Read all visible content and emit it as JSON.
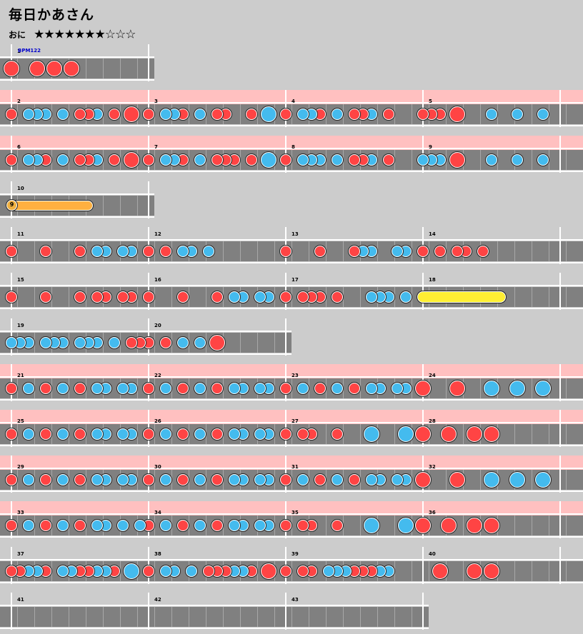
{
  "song": {
    "title": "毎日かあさん",
    "difficulty": "おに",
    "stars": "★★★★★★★☆☆☆",
    "bpm_label": "BPM122"
  },
  "colors": {
    "don": "#ff4444",
    "ka": "#44bbee",
    "roll": "#ffb040",
    "big_roll": "#ffee33",
    "band": "#ffc0c0",
    "track": "#808080"
  },
  "rows": [
    {
      "top": 62,
      "bars": 1,
      "band": false,
      "first": 1,
      "bpm": true,
      "notes": [
        [
          0,
          "D"
        ],
        [
          0.1875,
          "D"
        ],
        [
          0.3125,
          "D"
        ],
        [
          0.4375,
          "D"
        ]
      ]
    },
    {
      "top": 126,
      "bars": 4,
      "band": true,
      "first": 2,
      "notes": [
        [
          0,
          "d"
        ],
        [
          0.125,
          "k"
        ],
        [
          0.1875,
          "k"
        ],
        [
          0.25,
          "k"
        ],
        [
          0.375,
          "k"
        ],
        [
          0.5,
          "d"
        ],
        [
          0.5625,
          "d"
        ],
        [
          0.625,
          "k"
        ],
        [
          0.75,
          "d"
        ],
        [
          0.875,
          "D"
        ],
        [
          1,
          "d"
        ],
        [
          1.125,
          "k"
        ],
        [
          1.1875,
          "k"
        ],
        [
          1.25,
          "d"
        ],
        [
          1.375,
          "k"
        ],
        [
          1.5,
          "d"
        ],
        [
          1.5625,
          "d"
        ],
        [
          1.75,
          "d"
        ],
        [
          1.875,
          "K"
        ],
        [
          2,
          "d"
        ],
        [
          2.125,
          "k"
        ],
        [
          2.1875,
          "k"
        ],
        [
          2.25,
          "d"
        ],
        [
          2.375,
          "k"
        ],
        [
          2.5,
          "d"
        ],
        [
          2.5625,
          "d"
        ],
        [
          2.625,
          "k"
        ],
        [
          2.75,
          "d"
        ],
        [
          3,
          "d"
        ],
        [
          3.0625,
          "d"
        ],
        [
          3.125,
          "d"
        ],
        [
          3.25,
          "D"
        ],
        [
          3.5,
          "k"
        ],
        [
          3.6875,
          "k"
        ],
        [
          3.875,
          "k"
        ]
      ]
    },
    {
      "top": 190,
      "bars": 4,
      "band": true,
      "first": 6,
      "notes": [
        [
          0,
          "d"
        ],
        [
          0.125,
          "k"
        ],
        [
          0.1875,
          "k"
        ],
        [
          0.25,
          "d"
        ],
        [
          0.375,
          "k"
        ],
        [
          0.5,
          "d"
        ],
        [
          0.5625,
          "d"
        ],
        [
          0.625,
          "k"
        ],
        [
          0.75,
          "d"
        ],
        [
          0.875,
          "D"
        ],
        [
          1,
          "d"
        ],
        [
          1.125,
          "k"
        ],
        [
          1.1875,
          "k"
        ],
        [
          1.25,
          "d"
        ],
        [
          1.375,
          "k"
        ],
        [
          1.5,
          "d"
        ],
        [
          1.5625,
          "d"
        ],
        [
          1.625,
          "d"
        ],
        [
          1.75,
          "d"
        ],
        [
          1.875,
          "K"
        ],
        [
          2,
          "d"
        ],
        [
          2.125,
          "k"
        ],
        [
          2.1875,
          "k"
        ],
        [
          2.25,
          "k"
        ],
        [
          2.375,
          "k"
        ],
        [
          2.5,
          "d"
        ],
        [
          2.5625,
          "d"
        ],
        [
          2.625,
          "k"
        ],
        [
          2.75,
          "d"
        ],
        [
          3,
          "k"
        ],
        [
          3.0625,
          "k"
        ],
        [
          3.125,
          "k"
        ],
        [
          3.25,
          "D"
        ],
        [
          3.5,
          "k"
        ],
        [
          3.6875,
          "k"
        ],
        [
          3.875,
          "k"
        ]
      ]
    },
    {
      "top": 254,
      "bars": 1,
      "band": false,
      "first": 10,
      "balloon": {
        "start": 0,
        "end": 0.5625,
        "count": "9"
      },
      "notes": []
    },
    {
      "top": 318,
      "bars": 4,
      "band": false,
      "first": 11,
      "notes": [
        [
          0,
          "d"
        ],
        [
          0.25,
          "d"
        ],
        [
          0.5,
          "d"
        ],
        [
          0.625,
          "k"
        ],
        [
          0.6875,
          "k"
        ],
        [
          0.8125,
          "k"
        ],
        [
          0.875,
          "k"
        ],
        [
          1,
          "d"
        ],
        [
          1.125,
          "d"
        ],
        [
          1.25,
          "k"
        ],
        [
          1.3125,
          "k"
        ],
        [
          1.4375,
          "k"
        ],
        [
          2,
          "d"
        ],
        [
          2.25,
          "d"
        ],
        [
          2.5,
          "d"
        ],
        [
          2.5625,
          "k"
        ],
        [
          2.625,
          "k"
        ],
        [
          2.8125,
          "k"
        ],
        [
          2.875,
          "k"
        ],
        [
          3,
          "d"
        ],
        [
          3.125,
          "d"
        ],
        [
          3.25,
          "d"
        ],
        [
          3.3125,
          "d"
        ],
        [
          3.4375,
          "d"
        ]
      ]
    },
    {
      "top": 382,
      "bars": 4,
      "band": false,
      "first": 15,
      "bigroll": {
        "start": 3,
        "end": 3.5625
      },
      "notes": [
        [
          0,
          "d"
        ],
        [
          0.25,
          "d"
        ],
        [
          0.5,
          "d"
        ],
        [
          0.625,
          "d"
        ],
        [
          0.6875,
          "d"
        ],
        [
          0.8125,
          "d"
        ],
        [
          0.875,
          "d"
        ],
        [
          1,
          "d"
        ],
        [
          1.25,
          "d"
        ],
        [
          1.5,
          "d"
        ],
        [
          1.625,
          "k"
        ],
        [
          1.6875,
          "k"
        ],
        [
          1.8125,
          "k"
        ],
        [
          1.875,
          "k"
        ],
        [
          2,
          "d"
        ],
        [
          2.125,
          "d"
        ],
        [
          2.1875,
          "d"
        ],
        [
          2.25,
          "d"
        ],
        [
          2.375,
          "d"
        ],
        [
          2.625,
          "k"
        ],
        [
          2.6875,
          "k"
        ],
        [
          2.75,
          "k"
        ],
        [
          2.875,
          "k"
        ]
      ]
    },
    {
      "top": 446,
      "bars": 2,
      "band": false,
      "first": 19,
      "notes": [
        [
          0,
          "k"
        ],
        [
          0.0625,
          "k"
        ],
        [
          0.125,
          "k"
        ],
        [
          0.25,
          "k"
        ],
        [
          0.3125,
          "k"
        ],
        [
          0.375,
          "k"
        ],
        [
          0.5,
          "k"
        ],
        [
          0.5625,
          "k"
        ],
        [
          0.625,
          "k"
        ],
        [
          0.75,
          "k"
        ],
        [
          0.875,
          "d"
        ],
        [
          0.9375,
          "d"
        ],
        [
          1,
          "d"
        ],
        [
          1.125,
          "d"
        ],
        [
          1.25,
          "k"
        ],
        [
          1.375,
          "k"
        ],
        [
          1.5,
          "D"
        ]
      ]
    },
    {
      "top": 510,
      "bars": 4,
      "band": true,
      "first": 21,
      "notes": [
        [
          0,
          "d"
        ],
        [
          0.125,
          "k"
        ],
        [
          0.25,
          "d"
        ],
        [
          0.375,
          "k"
        ],
        [
          0.5,
          "d"
        ],
        [
          0.625,
          "k"
        ],
        [
          0.6875,
          "k"
        ],
        [
          0.8125,
          "k"
        ],
        [
          0.875,
          "k"
        ],
        [
          1,
          "d"
        ],
        [
          1.125,
          "k"
        ],
        [
          1.25,
          "d"
        ],
        [
          1.375,
          "k"
        ],
        [
          1.5,
          "d"
        ],
        [
          1.625,
          "k"
        ],
        [
          1.6875,
          "k"
        ],
        [
          1.8125,
          "k"
        ],
        [
          1.875,
          "k"
        ],
        [
          2,
          "d"
        ],
        [
          2.125,
          "k"
        ],
        [
          2.25,
          "d"
        ],
        [
          2.375,
          "k"
        ],
        [
          2.5,
          "d"
        ],
        [
          2.625,
          "k"
        ],
        [
          2.6875,
          "k"
        ],
        [
          2.8125,
          "k"
        ],
        [
          2.875,
          "k"
        ],
        [
          3,
          "D"
        ],
        [
          3.25,
          "D"
        ],
        [
          3.5,
          "K"
        ],
        [
          3.6875,
          "K"
        ],
        [
          3.875,
          "K"
        ]
      ]
    },
    {
      "top": 574,
      "bars": 4,
      "band": true,
      "first": 25,
      "notes": [
        [
          0,
          "d"
        ],
        [
          0.125,
          "k"
        ],
        [
          0.25,
          "d"
        ],
        [
          0.375,
          "k"
        ],
        [
          0.5,
          "d"
        ],
        [
          0.625,
          "k"
        ],
        [
          0.6875,
          "k"
        ],
        [
          0.8125,
          "k"
        ],
        [
          0.875,
          "k"
        ],
        [
          1,
          "d"
        ],
        [
          1.125,
          "k"
        ],
        [
          1.25,
          "d"
        ],
        [
          1.375,
          "k"
        ],
        [
          1.5,
          "d"
        ],
        [
          1.625,
          "k"
        ],
        [
          1.6875,
          "k"
        ],
        [
          1.8125,
          "k"
        ],
        [
          1.875,
          "k"
        ],
        [
          2,
          "d"
        ],
        [
          2.125,
          "d"
        ],
        [
          2.1875,
          "d"
        ],
        [
          2.375,
          "d"
        ],
        [
          2.625,
          "K"
        ],
        [
          2.875,
          "K"
        ],
        [
          3,
          "D"
        ],
        [
          3.1875,
          "D"
        ],
        [
          3.375,
          "D"
        ],
        [
          3.5,
          "D"
        ]
      ]
    },
    {
      "top": 638,
      "bars": 4,
      "band": true,
      "first": 29,
      "notes": [
        [
          0,
          "d"
        ],
        [
          0.125,
          "k"
        ],
        [
          0.25,
          "d"
        ],
        [
          0.375,
          "k"
        ],
        [
          0.5,
          "d"
        ],
        [
          0.625,
          "k"
        ],
        [
          0.6875,
          "k"
        ],
        [
          0.8125,
          "k"
        ],
        [
          0.875,
          "k"
        ],
        [
          1,
          "d"
        ],
        [
          1.125,
          "k"
        ],
        [
          1.25,
          "d"
        ],
        [
          1.375,
          "k"
        ],
        [
          1.5,
          "d"
        ],
        [
          1.625,
          "k"
        ],
        [
          1.6875,
          "k"
        ],
        [
          1.8125,
          "k"
        ],
        [
          1.875,
          "k"
        ],
        [
          2,
          "d"
        ],
        [
          2.125,
          "k"
        ],
        [
          2.25,
          "d"
        ],
        [
          2.375,
          "k"
        ],
        [
          2.5,
          "d"
        ],
        [
          2.625,
          "k"
        ],
        [
          2.6875,
          "k"
        ],
        [
          2.8125,
          "k"
        ],
        [
          2.875,
          "k"
        ],
        [
          3,
          "D"
        ],
        [
          3.25,
          "D"
        ],
        [
          3.5,
          "K"
        ],
        [
          3.6875,
          "K"
        ],
        [
          3.875,
          "K"
        ]
      ]
    },
    {
      "top": 702,
      "bars": 4,
      "band": true,
      "first": 33,
      "notes": [
        [
          0,
          "d"
        ],
        [
          0.125,
          "k"
        ],
        [
          0.25,
          "d"
        ],
        [
          0.375,
          "k"
        ],
        [
          0.5,
          "d"
        ],
        [
          0.625,
          "k"
        ],
        [
          0.6875,
          "k"
        ],
        [
          0.8125,
          "k"
        ],
        [
          0.9375,
          "k"
        ],
        [
          1,
          "d"
        ],
        [
          1.125,
          "k"
        ],
        [
          1.25,
          "d"
        ],
        [
          1.375,
          "k"
        ],
        [
          1.5,
          "d"
        ],
        [
          1.625,
          "k"
        ],
        [
          1.6875,
          "k"
        ],
        [
          1.8125,
          "k"
        ],
        [
          1.875,
          "k"
        ],
        [
          2,
          "d"
        ],
        [
          2.125,
          "d"
        ],
        [
          2.1875,
          "d"
        ],
        [
          2.375,
          "d"
        ],
        [
          2.625,
          "K"
        ],
        [
          2.875,
          "K"
        ],
        [
          3,
          "D"
        ],
        [
          3.1875,
          "D"
        ],
        [
          3.375,
          "D"
        ],
        [
          3.5,
          "D"
        ]
      ]
    },
    {
      "top": 766,
      "bars": 4,
      "band": false,
      "first": 37,
      "notes": [
        [
          0,
          "d"
        ],
        [
          0.0625,
          "d"
        ],
        [
          0.125,
          "k"
        ],
        [
          0.1875,
          "k"
        ],
        [
          0.25,
          "d"
        ],
        [
          0.375,
          "k"
        ],
        [
          0.4375,
          "k"
        ],
        [
          0.5,
          "d"
        ],
        [
          0.5625,
          "d"
        ],
        [
          0.625,
          "k"
        ],
        [
          0.6875,
          "k"
        ],
        [
          0.75,
          "d"
        ],
        [
          0.875,
          "K"
        ],
        [
          1,
          "d"
        ],
        [
          1.125,
          "k"
        ],
        [
          1.1875,
          "k"
        ],
        [
          1.3125,
          "k"
        ],
        [
          1.4375,
          "d"
        ],
        [
          1.5,
          "d"
        ],
        [
          1.5625,
          "d"
        ],
        [
          1.625,
          "k"
        ],
        [
          1.6875,
          "k"
        ],
        [
          1.75,
          "d"
        ],
        [
          1.875,
          "D"
        ],
        [
          2,
          "d"
        ],
        [
          2.125,
          "d"
        ],
        [
          2.1875,
          "d"
        ],
        [
          2.3125,
          "k"
        ],
        [
          2.375,
          "k"
        ],
        [
          2.4375,
          "k"
        ],
        [
          2.5,
          "d"
        ],
        [
          2.5625,
          "d"
        ],
        [
          2.625,
          "d"
        ],
        [
          2.6875,
          "k"
        ],
        [
          2.75,
          "k"
        ],
        [
          3.125,
          "D"
        ],
        [
          3.375,
          "D"
        ],
        [
          3.5,
          "D"
        ]
      ]
    },
    {
      "top": 830,
      "bars": 3,
      "band": false,
      "first": 41,
      "notes": []
    }
  ]
}
